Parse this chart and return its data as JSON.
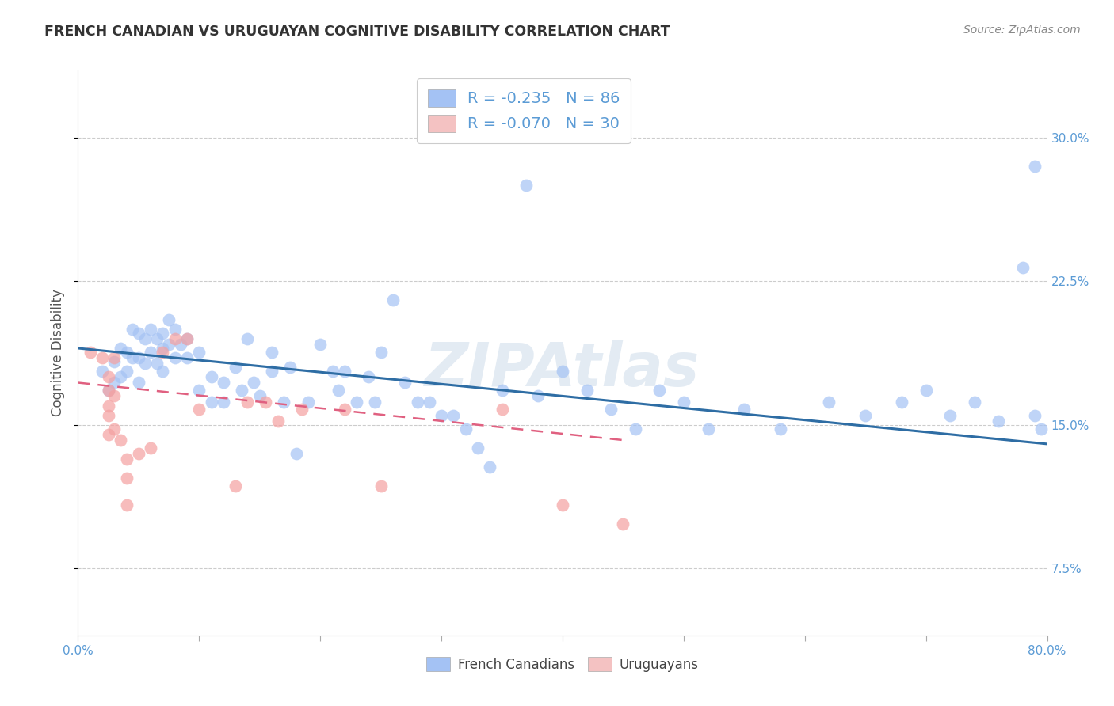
{
  "title": "FRENCH CANADIAN VS URUGUAYAN COGNITIVE DISABILITY CORRELATION CHART",
  "source": "Source: ZipAtlas.com",
  "ylabel": "Cognitive Disability",
  "ytick_labels": [
    "7.5%",
    "15.0%",
    "22.5%",
    "30.0%"
  ],
  "ytick_values": [
    0.075,
    0.15,
    0.225,
    0.3
  ],
  "xlim": [
    0.0,
    0.8
  ],
  "ylim": [
    0.04,
    0.335
  ],
  "legend_blue_r": "-0.235",
  "legend_blue_n": "86",
  "legend_pink_r": "-0.070",
  "legend_pink_n": "30",
  "blue_patch_color": "#a4c2f4",
  "pink_patch_color": "#f4c2c2",
  "blue_scatter_color": "#a4c2f4",
  "pink_scatter_color": "#f4a0a0",
  "blue_line_color": "#2e6da4",
  "pink_line_color": "#e06080",
  "label_color": "#5b9bd5",
  "text_color_dark": "#333333",
  "watermark_color": "#c8d8e8",
  "blue_scatter_x": [
    0.02,
    0.025,
    0.03,
    0.03,
    0.035,
    0.035,
    0.04,
    0.04,
    0.045,
    0.045,
    0.05,
    0.05,
    0.05,
    0.055,
    0.055,
    0.06,
    0.06,
    0.065,
    0.065,
    0.07,
    0.07,
    0.07,
    0.075,
    0.075,
    0.08,
    0.08,
    0.085,
    0.09,
    0.09,
    0.1,
    0.1,
    0.11,
    0.11,
    0.12,
    0.12,
    0.13,
    0.135,
    0.14,
    0.145,
    0.15,
    0.16,
    0.16,
    0.17,
    0.175,
    0.18,
    0.19,
    0.2,
    0.21,
    0.215,
    0.22,
    0.23,
    0.24,
    0.245,
    0.25,
    0.26,
    0.27,
    0.28,
    0.29,
    0.3,
    0.31,
    0.32,
    0.33,
    0.34,
    0.35,
    0.37,
    0.38,
    0.4,
    0.42,
    0.44,
    0.46,
    0.48,
    0.5,
    0.52,
    0.55,
    0.58,
    0.62,
    0.65,
    0.68,
    0.7,
    0.72,
    0.74,
    0.76,
    0.78,
    0.79,
    0.79,
    0.795
  ],
  "blue_scatter_y": [
    0.178,
    0.168,
    0.183,
    0.172,
    0.19,
    0.175,
    0.188,
    0.178,
    0.2,
    0.185,
    0.198,
    0.185,
    0.172,
    0.195,
    0.182,
    0.2,
    0.188,
    0.195,
    0.182,
    0.198,
    0.19,
    0.178,
    0.205,
    0.192,
    0.2,
    0.185,
    0.192,
    0.195,
    0.185,
    0.188,
    0.168,
    0.175,
    0.162,
    0.172,
    0.162,
    0.18,
    0.168,
    0.195,
    0.172,
    0.165,
    0.188,
    0.178,
    0.162,
    0.18,
    0.135,
    0.162,
    0.192,
    0.178,
    0.168,
    0.178,
    0.162,
    0.175,
    0.162,
    0.188,
    0.215,
    0.172,
    0.162,
    0.162,
    0.155,
    0.155,
    0.148,
    0.138,
    0.128,
    0.168,
    0.275,
    0.165,
    0.178,
    0.168,
    0.158,
    0.148,
    0.168,
    0.162,
    0.148,
    0.158,
    0.148,
    0.162,
    0.155,
    0.162,
    0.168,
    0.155,
    0.162,
    0.152,
    0.232,
    0.155,
    0.285,
    0.148
  ],
  "pink_scatter_x": [
    0.01,
    0.02,
    0.025,
    0.025,
    0.025,
    0.025,
    0.025,
    0.03,
    0.03,
    0.03,
    0.035,
    0.04,
    0.04,
    0.04,
    0.05,
    0.06,
    0.07,
    0.08,
    0.09,
    0.1,
    0.13,
    0.14,
    0.155,
    0.165,
    0.185,
    0.22,
    0.25,
    0.35,
    0.4,
    0.45
  ],
  "pink_scatter_y": [
    0.188,
    0.185,
    0.175,
    0.168,
    0.16,
    0.155,
    0.145,
    0.185,
    0.165,
    0.148,
    0.142,
    0.132,
    0.122,
    0.108,
    0.135,
    0.138,
    0.188,
    0.195,
    0.195,
    0.158,
    0.118,
    0.162,
    0.162,
    0.152,
    0.158,
    0.158,
    0.118,
    0.158,
    0.108,
    0.098
  ],
  "blue_trendline_x": [
    0.0,
    0.8
  ],
  "blue_trendline_y": [
    0.19,
    0.14
  ],
  "pink_trendline_x": [
    0.0,
    0.45
  ],
  "pink_trendline_y": [
    0.172,
    0.142
  ]
}
